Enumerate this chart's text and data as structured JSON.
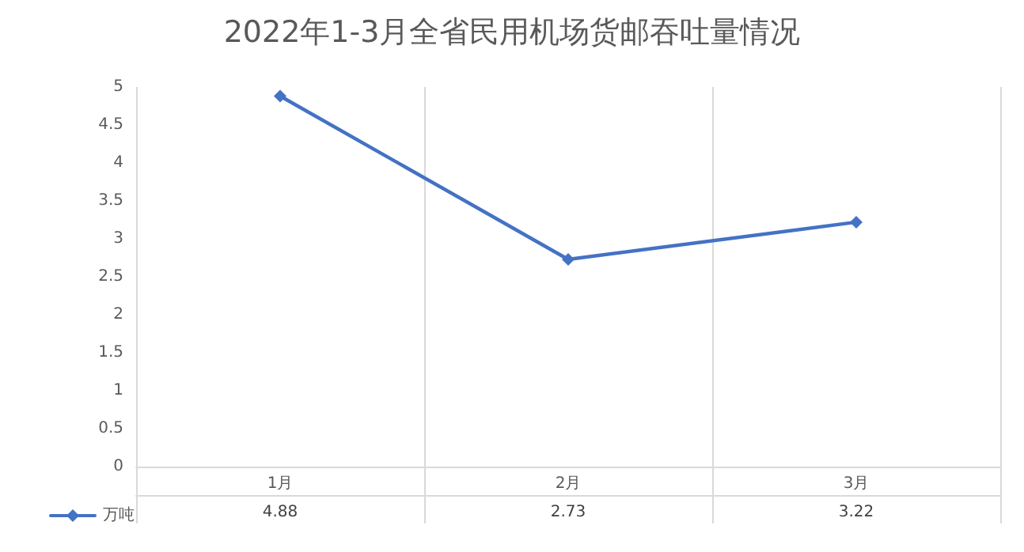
{
  "chart_data": {
    "type": "line",
    "title": "2022年1-3月全省民用机场货邮吞吐量情况",
    "categories": [
      "1月",
      "2月",
      "3月"
    ],
    "series": [
      {
        "name": "万吨",
        "color": "#4472c4",
        "values": [
          4.88,
          2.73,
          3.22
        ]
      }
    ],
    "ylim": [
      0,
      5
    ],
    "yticks": [
      0,
      0.5,
      1,
      1.5,
      2,
      2.5,
      3,
      3.5,
      4,
      4.5,
      5
    ],
    "grid": "x",
    "legend": "bottom left",
    "marker": "diamond",
    "line_style": "solid",
    "data_labels": true
  }
}
